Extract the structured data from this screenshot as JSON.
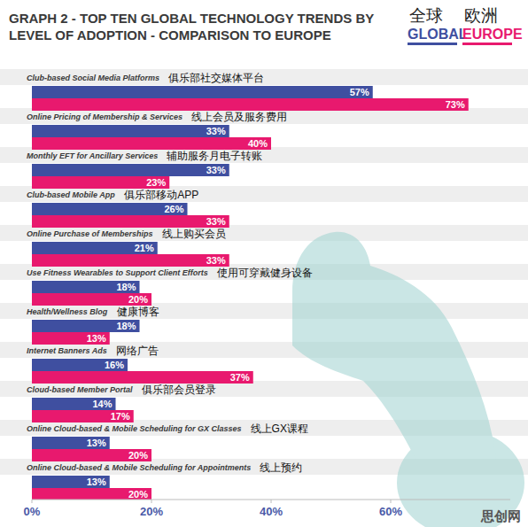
{
  "chart_data": {
    "type": "bar",
    "orientation": "horizontal",
    "title": "GRAPH 2 - TOP TEN GLOBAL TECHNOLOGY TRENDS BY LEVEL OF ADOPTION - COMPARISON TO EUROPE",
    "categories": [
      "Club-based Social Media Platforms",
      "Online Pricing of Membership & Services",
      "Monthly EFT for Ancillary Services",
      "Club-based Mobile App",
      "Online Purchase of Memberships",
      "Use Fitness Wearables to Support Client Efforts",
      "Health/Wellness Blog",
      "Internet Banners Ads",
      "Cloud-based Member Portal",
      "Online Cloud-based & Mobile Scheduling for GX Classes",
      "Online Cloud-based & Mobile Scheduling for Appointments"
    ],
    "categories_zh": [
      "俱乐部社交媒体平台",
      "线上会员及服务费用",
      "辅助服务月电子转账",
      "俱乐部移动APP",
      "线上购买会员",
      "使用可穿戴健身设备",
      "健康博客",
      "网络广告",
      "俱乐部会员登录",
      "线上GX课程",
      "线上预约"
    ],
    "series": [
      {
        "name": "GLOBAL",
        "name_zh": "全球",
        "color": "#3f4fa0",
        "values": [
          57,
          33,
          33,
          26,
          21,
          18,
          18,
          16,
          14,
          13,
          13
        ],
        "value_labels": [
          "57%",
          "33%",
          "33%",
          "26%",
          "21%",
          "18%",
          "18%",
          "16%",
          "14%",
          "13%",
          "13%"
        ]
      },
      {
        "name": "EUROPE",
        "name_zh": "欧洲",
        "color": "#e8196e",
        "values": [
          73,
          40,
          23,
          33,
          33,
          20,
          13,
          37,
          17,
          20,
          20
        ],
        "value_labels": [
          "73%",
          "40%",
          "23%",
          "33%",
          "33%",
          "20%",
          "13%",
          "37%",
          "17%",
          "20%",
          "20%"
        ]
      }
    ],
    "xlim": [
      0,
      80
    ],
    "xticks": [
      {
        "value": 0,
        "label": "0%"
      },
      {
        "value": 20,
        "label": "20%"
      },
      {
        "value": 40,
        "label": "40%"
      },
      {
        "value": 60,
        "label": "60%"
      }
    ],
    "data_labels": true,
    "legend": "top-right",
    "grid": false,
    "watermark": "思创网"
  }
}
